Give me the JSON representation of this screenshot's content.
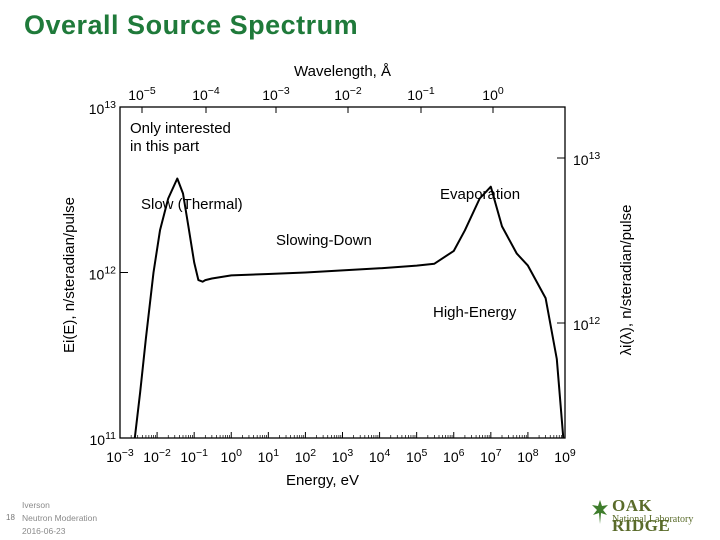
{
  "slide": {
    "title": "Overall Source Spectrum",
    "page_number": "18",
    "footer_lines": [
      "Iverson",
      "Neutron Moderation",
      "2016-06-23"
    ],
    "logo_name": "OAK RIDGE",
    "logo_sub": "National Laboratory",
    "accent_color": "#1f7a3a"
  },
  "chart_data": {
    "type": "line",
    "title": "",
    "xlabel": "Energy, eV",
    "ylabel": "Ei(E), n/steradian/pulse",
    "x2label": "Wavelength, Å",
    "y2label": "λi(λ), n/steradian/pulse",
    "x_scale": "log",
    "y_scale": "log",
    "xlim": [
      0.001,
      1000000000
    ],
    "ylim": [
      100000000000,
      10000000000000
    ],
    "x_ticks": [
      {
        "base": "10",
        "exp": "−3"
      },
      {
        "base": "10",
        "exp": "−2"
      },
      {
        "base": "10",
        "exp": "−1"
      },
      {
        "base": "10",
        "exp": "0"
      },
      {
        "base": "10",
        "exp": "1"
      },
      {
        "base": "10",
        "exp": "2"
      },
      {
        "base": "10",
        "exp": "3"
      },
      {
        "base": "10",
        "exp": "4"
      },
      {
        "base": "10",
        "exp": "5"
      },
      {
        "base": "10",
        "exp": "6"
      },
      {
        "base": "10",
        "exp": "7"
      },
      {
        "base": "10",
        "exp": "8"
      },
      {
        "base": "10",
        "exp": "9"
      }
    ],
    "y_ticks": [
      {
        "base": "10",
        "exp": "11"
      },
      {
        "base": "10",
        "exp": "12"
      },
      {
        "base": "10",
        "exp": "13"
      }
    ],
    "top_ticks": [
      {
        "base": "10",
        "exp": "−5"
      },
      {
        "base": "10",
        "exp": "−4"
      },
      {
        "base": "10",
        "exp": "−3"
      },
      {
        "base": "10",
        "exp": "−2"
      },
      {
        "base": "10",
        "exp": "−1"
      },
      {
        "base": "10",
        "exp": "0"
      }
    ],
    "right_ticks": [
      {
        "base": "10",
        "exp": "12"
      },
      {
        "base": "10",
        "exp": "13"
      }
    ],
    "annotations": [
      {
        "text": "Only interested in this part"
      },
      {
        "text": "Slow (Thermal)"
      },
      {
        "text": "Evaporation"
      },
      {
        "text": "Slowing-Down"
      },
      {
        "text": "High-Energy"
      }
    ],
    "series": [
      {
        "x": [
          0.0025,
          0.0035,
          0.005,
          0.008,
          0.012,
          0.02,
          0.035,
          0.05,
          0.07,
          0.1,
          0.13,
          0.17,
          0.2,
          0.3,
          1,
          10,
          100,
          1000,
          10000,
          100000,
          300000,
          1000000,
          2000000,
          5000000,
          10000000,
          20000000,
          50000000,
          100000000,
          300000000,
          600000000,
          900000000
        ],
        "y": [
          100000000000,
          190000000000,
          400000000000,
          1000000000000,
          1800000000000,
          2800000000000,
          3700000000000,
          3000000000000,
          1900000000000,
          1150000000000,
          900000000000,
          880000000000,
          900000000000,
          920000000000,
          960000000000,
          980000000000,
          1000000000000,
          1030000000000,
          1060000000000,
          1100000000000,
          1130000000000,
          1350000000000,
          1800000000000,
          2800000000000,
          3300000000000,
          1900000000000,
          1300000000000,
          1100000000000,
          700000000000,
          300000000000,
          100000000000
        ]
      }
    ]
  }
}
